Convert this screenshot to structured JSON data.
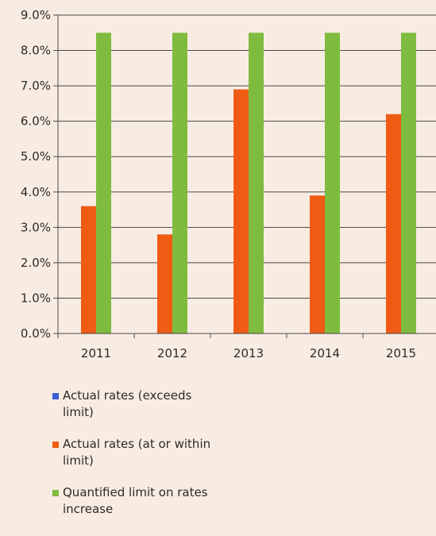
{
  "chart_data": {
    "type": "bar",
    "categories": [
      "2011",
      "2012",
      "2013",
      "2014",
      "2015"
    ],
    "series": [
      {
        "name": "Actual rates (exceeds limit)",
        "color": "#3b5bd6",
        "values": [
          null,
          null,
          null,
          null,
          null
        ]
      },
      {
        "name": "Actual rates (at or within limit)",
        "color": "#ef5b13",
        "values": [
          3.6,
          2.8,
          6.9,
          3.9,
          6.2
        ]
      },
      {
        "name": "Quantified limit on rates increase",
        "color": "#7fbb3e",
        "values": [
          8.5,
          8.5,
          8.5,
          8.5,
          8.5
        ]
      }
    ],
    "yticks": [
      "0.0%",
      "1.0%",
      "2.0%",
      "3.0%",
      "4.0%",
      "5.0%",
      "6.0%",
      "7.0%",
      "8.0%",
      "9.0%"
    ],
    "ylim": [
      0,
      9
    ],
    "grid": true,
    "legend_position": "bottom-left"
  }
}
